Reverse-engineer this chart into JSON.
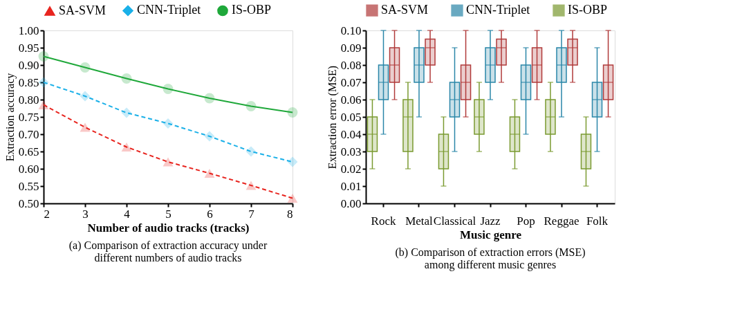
{
  "chart_data": [
    {
      "type": "line",
      "xlabel": "Number of audio tracks (tracks)",
      "ylabel": "Extraction accuracy",
      "annotations": [
        "(a) Comparison of extraction accuracy under\ndifferent numbers of audio tracks"
      ],
      "x": [
        2,
        3,
        4,
        5,
        6,
        7,
        8
      ],
      "xlim": [
        2,
        8
      ],
      "xticks": [
        2,
        3,
        4,
        5,
        6,
        7,
        8
      ],
      "ylim": [
        0.5,
        1.0
      ],
      "yticks": [
        {
          "value": 0.5,
          "label": "0.50"
        },
        0.55,
        {
          "value": 0.6,
          "label": "0.60"
        },
        0.65,
        {
          "value": 0.7,
          "label": "0.70"
        },
        0.75,
        {
          "value": 0.8,
          "label": "0.80"
        },
        0.85,
        {
          "value": 0.9,
          "label": "0.90"
        },
        0.95,
        {
          "value": 1.0,
          "label": "1.00"
        }
      ],
      "grid": false,
      "legend": "top",
      "series": [
        {
          "name": "SA-SVM",
          "color": "#e8251f",
          "marker": "triangle",
          "line_style": "dashed",
          "values": [
            0.785,
            0.72,
            0.663,
            0.62,
            0.587,
            0.552,
            0.515
          ]
        },
        {
          "name": "CNN-Triplet",
          "color": "#1ab0e8",
          "marker": "diamond",
          "line_style": "dashed",
          "values": [
            0.85,
            0.81,
            0.762,
            0.731,
            0.694,
            0.65,
            0.62
          ]
        },
        {
          "name": "IS-OBP",
          "color": "#1fa83a",
          "marker": "circle",
          "line_style": "solid",
          "values": [
            0.925,
            0.893,
            0.861,
            0.831,
            0.804,
            0.781,
            0.763
          ]
        }
      ]
    },
    {
      "type": "box",
      "xlabel": "Music genre",
      "ylabel": "Extraction error (MSE)",
      "annotations": [
        "(b) Comparison of extraction errors (MSE)\namong different music genres"
      ],
      "categories": [
        "Rock",
        "Metal",
        "Classical",
        "Jazz",
        "Pop",
        "Reggae",
        "Folk"
      ],
      "ylim": [
        0.0,
        0.1
      ],
      "yticks": [
        {
          "value": 0.0,
          "label": "0.00"
        },
        0.01,
        0.02,
        0.03,
        0.04,
        0.05,
        0.06,
        0.07,
        0.08,
        0.09,
        {
          "value": 0.1,
          "label": "0.10"
        }
      ],
      "grid": false,
      "legend": "top",
      "series": [
        {
          "name": "SA-SVM",
          "color": "#b03a3a",
          "boxes": [
            {
              "low": 0.06,
              "q1": 0.07,
              "median": 0.08,
              "q3": 0.09,
              "high": 0.1
            },
            {
              "low": 0.07,
              "q1": 0.08,
              "median": 0.09,
              "q3": 0.095,
              "high": 0.1
            },
            {
              "low": 0.05,
              "q1": 0.06,
              "median": 0.07,
              "q3": 0.08,
              "high": 0.1
            },
            {
              "low": 0.07,
              "q1": 0.08,
              "median": 0.09,
              "q3": 0.095,
              "high": 0.1
            },
            {
              "low": 0.06,
              "q1": 0.07,
              "median": 0.08,
              "q3": 0.09,
              "high": 0.1
            },
            {
              "low": 0.07,
              "q1": 0.08,
              "median": 0.09,
              "q3": 0.095,
              "high": 0.1
            },
            {
              "low": 0.05,
              "q1": 0.06,
              "median": 0.07,
              "q3": 0.08,
              "high": 0.1
            }
          ]
        },
        {
          "name": "CNN-Triplet",
          "color": "#2a86a8",
          "boxes": [
            {
              "low": 0.04,
              "q1": 0.06,
              "median": 0.07,
              "q3": 0.08,
              "high": 0.1
            },
            {
              "low": 0.05,
              "q1": 0.07,
              "median": 0.08,
              "q3": 0.09,
              "high": 0.1
            },
            {
              "low": 0.03,
              "q1": 0.05,
              "median": 0.06,
              "q3": 0.07,
              "high": 0.09
            },
            {
              "low": 0.06,
              "q1": 0.07,
              "median": 0.08,
              "q3": 0.09,
              "high": 0.1
            },
            {
              "low": 0.04,
              "q1": 0.06,
              "median": 0.07,
              "q3": 0.08,
              "high": 0.09
            },
            {
              "low": 0.05,
              "q1": 0.07,
              "median": 0.08,
              "q3": 0.09,
              "high": 0.1
            },
            {
              "low": 0.03,
              "q1": 0.05,
              "median": 0.06,
              "q3": 0.07,
              "high": 0.09
            }
          ]
        },
        {
          "name": "IS-OBP",
          "color": "#7a9a30",
          "boxes": [
            {
              "low": 0.02,
              "q1": 0.03,
              "median": 0.04,
              "q3": 0.05,
              "high": 0.06
            },
            {
              "low": 0.02,
              "q1": 0.03,
              "median": 0.05,
              "q3": 0.06,
              "high": 0.07
            },
            {
              "low": 0.01,
              "q1": 0.02,
              "median": 0.03,
              "q3": 0.04,
              "high": 0.05
            },
            {
              "low": 0.03,
              "q1": 0.04,
              "median": 0.05,
              "q3": 0.06,
              "high": 0.07
            },
            {
              "low": 0.02,
              "q1": 0.03,
              "median": 0.04,
              "q3": 0.05,
              "high": 0.06
            },
            {
              "low": 0.03,
              "q1": 0.04,
              "median": 0.05,
              "q3": 0.06,
              "high": 0.07
            },
            {
              "low": 0.01,
              "q1": 0.02,
              "median": 0.03,
              "q3": 0.04,
              "high": 0.05
            }
          ]
        }
      ]
    }
  ]
}
